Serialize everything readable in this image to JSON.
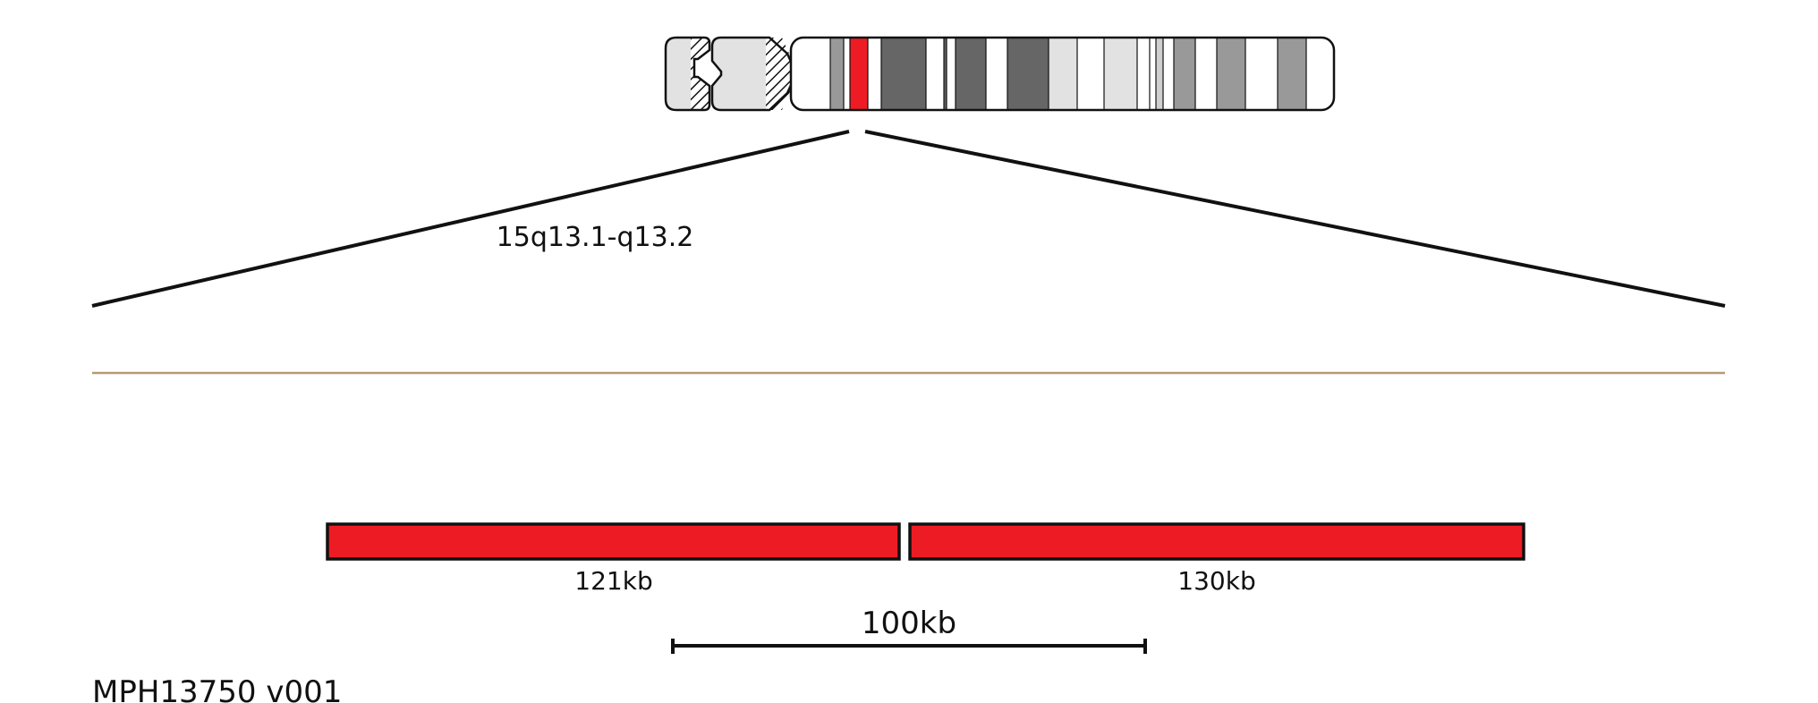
{
  "region_label": "15q13.1-q13.2",
  "probes": [
    {
      "label": "121kb"
    },
    {
      "label": "130kb"
    }
  ],
  "scale_bar": {
    "label": "100kb"
  },
  "product_code": "MPH13750 v001",
  "colors": {
    "probe_fill": "#ed1c24",
    "highlight_band": "#ed1c24",
    "region_line": "#b49a72",
    "outline": "#111111"
  }
}
